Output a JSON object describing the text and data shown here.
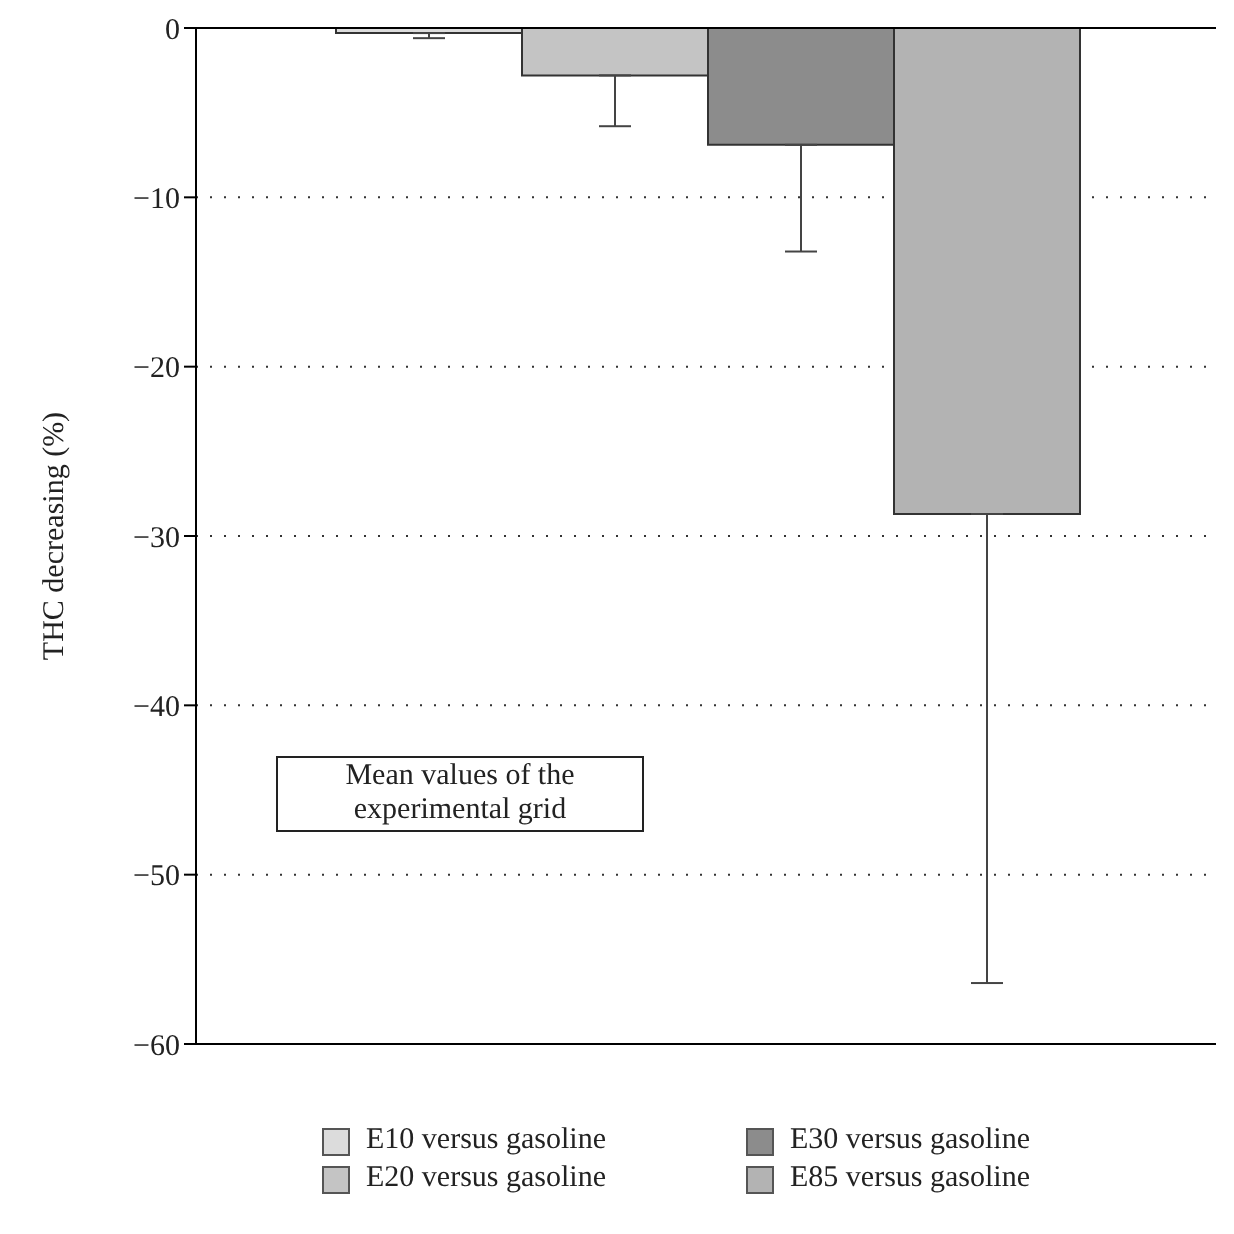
{
  "chart_data": {
    "type": "bar",
    "ylabel": "THC decreasing (%)",
    "categories": [
      null
    ],
    "series": [
      {
        "name": "E10 versus gasoline",
        "color": "#dcdcdc",
        "values": [
          -0.3
        ],
        "errors": [
          [
            -0.6,
            -0.3
          ]
        ]
      },
      {
        "name": "E20 versus gasoline",
        "color": "#c4c4c4",
        "values": [
          -2.8
        ],
        "errors": [
          [
            -5.8,
            -2.8
          ]
        ]
      },
      {
        "name": "E30 versus gasoline",
        "color": "#8c8c8c",
        "values": [
          -6.9
        ],
        "errors": [
          [
            -13.2,
            -6.9
          ]
        ]
      },
      {
        "name": "E85 versus gasoline",
        "color": "#b3b3b3",
        "values": [
          -28.7
        ],
        "errors": [
          [
            -56.4,
            -28.7
          ]
        ]
      }
    ],
    "ylim": [
      -60,
      0
    ],
    "yticks": [
      0,
      {
        "value": -10,
        "label": "−10"
      },
      {
        "value": -20,
        "label": "−20"
      },
      {
        "value": -30,
        "label": "−30"
      },
      {
        "value": -40,
        "label": "−40"
      },
      {
        "value": -50,
        "label": "−50"
      },
      {
        "value": -60,
        "label": "−60"
      }
    ],
    "grid": "y",
    "legend": "bottom",
    "annotations": [
      "Mean values of the experimental grid"
    ]
  }
}
